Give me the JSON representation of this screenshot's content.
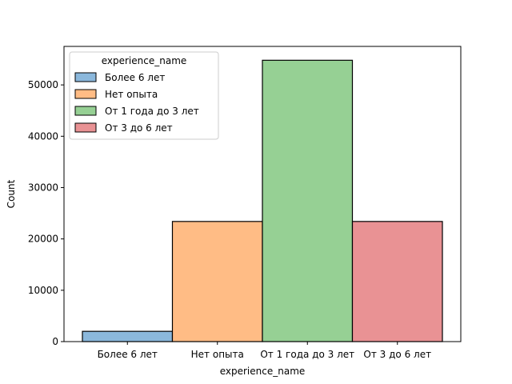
{
  "chart_data": {
    "type": "bar",
    "xlabel": "experience_name",
    "ylabel": "Count",
    "categories": [
      "Более 6 лет",
      "Нет опыта",
      "От 1 года до 3 лет",
      "От 3 до 6 лет"
    ],
    "values": [
      2000,
      23400,
      54800,
      23400
    ],
    "ylim": [
      0,
      57500
    ],
    "yticks": [
      0,
      10000,
      20000,
      30000,
      40000,
      50000
    ],
    "colors": [
      "#8bb8dc",
      "#ffbc85",
      "#96d094",
      "#e99294"
    ],
    "grid": false,
    "legend": {
      "title": "experience_name",
      "placement": "upper-left",
      "entries": [
        "Более 6 лет",
        "Нет опыта",
        "От 1 года до 3 лет",
        "От 3 до 6 лет"
      ]
    }
  }
}
